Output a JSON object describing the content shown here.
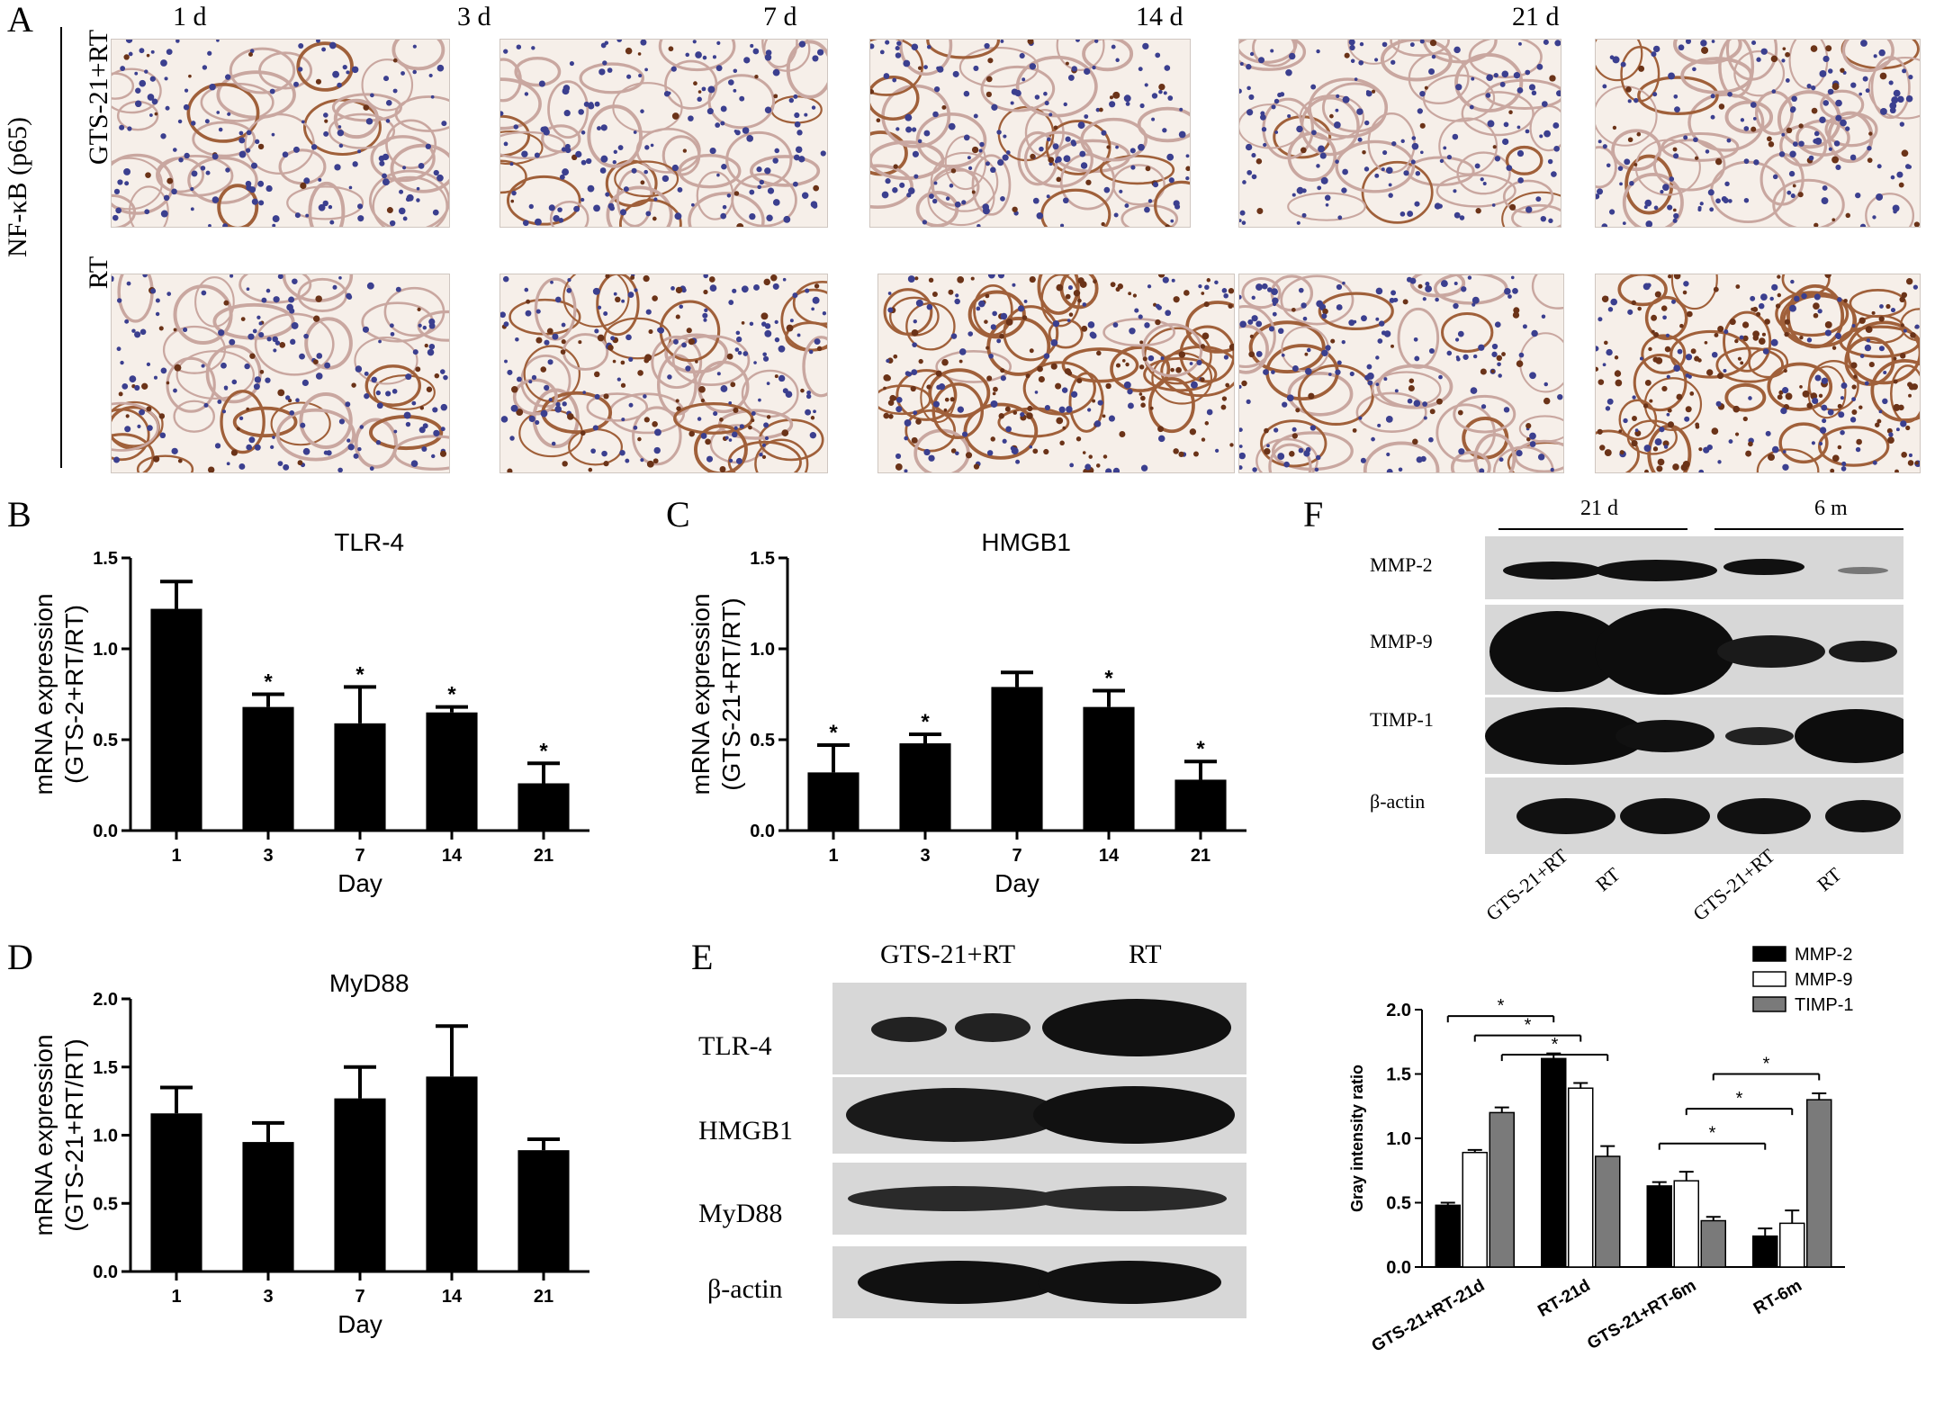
{
  "panelA": {
    "letter": "A",
    "days": [
      "1 d",
      "3 d",
      "7 d",
      "14 d",
      "21 d"
    ],
    "stain_label": "NF-κB (p65)",
    "rows": [
      "GTS-21+RT",
      "RT"
    ]
  },
  "panelB": {
    "letter": "B"
  },
  "panelC": {
    "letter": "C"
  },
  "panelD": {
    "letter": "D"
  },
  "panelE": {
    "letter": "E",
    "columns": [
      "GTS-21+RT",
      "RT"
    ],
    "rows": [
      "TLR-4",
      "HMGB1",
      "MyD88",
      "β-actin"
    ]
  },
  "panelF": {
    "letter": "F",
    "groups": [
      "21 d",
      "6 m"
    ],
    "rows": [
      "MMP-2",
      "MMP-9",
      "TIMP-1",
      "β-actin"
    ],
    "lanes": [
      "GTS-21+RT",
      "RT",
      "GTS-21+RT",
      "RT"
    ]
  },
  "chart_data": [
    {
      "panel": "B",
      "type": "bar",
      "title": "TLR-4",
      "xlabel": "Day",
      "ylabel": "mRNA expression\n(GTS-2+RT/RT)",
      "categories": [
        "1",
        "3",
        "7",
        "14",
        "21"
      ],
      "values": [
        1.22,
        0.68,
        0.59,
        0.65,
        0.26
      ],
      "errors": [
        0.15,
        0.07,
        0.2,
        0.03,
        0.11
      ],
      "significance": [
        "",
        "*",
        "*",
        "*",
        "*"
      ],
      "ylim": [
        0,
        1.5
      ],
      "yticks": [
        "0.0",
        "0.5",
        "1.0",
        "1.5"
      ]
    },
    {
      "panel": "C",
      "type": "bar",
      "title": "HMGB1",
      "xlabel": "Day",
      "ylabel": "mRNA expression\n(GTS-21+RT/RT)",
      "categories": [
        "1",
        "3",
        "7",
        "14",
        "21"
      ],
      "values": [
        0.32,
        0.48,
        0.79,
        0.68,
        0.28
      ],
      "errors": [
        0.15,
        0.05,
        0.08,
        0.09,
        0.1
      ],
      "significance": [
        "*",
        "*",
        "",
        "*",
        "*"
      ],
      "ylim": [
        0,
        1.5
      ],
      "yticks": [
        "0.0",
        "0.5",
        "1.0",
        "1.5"
      ]
    },
    {
      "panel": "D",
      "type": "bar",
      "title": "MyD88",
      "xlabel": "Day",
      "ylabel": "mRNA expression\n(GTS-21+RT/RT)",
      "categories": [
        "1",
        "3",
        "7",
        "14",
        "21"
      ],
      "values": [
        1.16,
        0.95,
        1.27,
        1.43,
        0.89
      ],
      "errors": [
        0.19,
        0.14,
        0.23,
        0.37,
        0.08
      ],
      "significance": [
        "",
        "",
        "",
        "",
        ""
      ],
      "ylim": [
        0,
        2.0
      ],
      "yticks": [
        "0.0",
        "0.5",
        "1.0",
        "1.5",
        "2.0"
      ]
    },
    {
      "panel": "F",
      "type": "bar",
      "title": "",
      "xlabel": "",
      "ylabel": "Gray intensity ratio",
      "categories": [
        "GTS-21+RT-21d",
        "RT-21d",
        "GTS-21+RT-6m",
        "RT-6m"
      ],
      "series": [
        {
          "name": "MMP-2",
          "color": "#000000",
          "values": [
            0.48,
            1.62,
            0.63,
            0.24
          ],
          "errors": [
            0.02,
            0.04,
            0.03,
            0.06
          ]
        },
        {
          "name": "MMP-9",
          "color": "#ffffff",
          "values": [
            0.89,
            1.39,
            0.67,
            0.34
          ],
          "errors": [
            0.02,
            0.04,
            0.07,
            0.1
          ]
        },
        {
          "name": "TIMP-1",
          "color": "#7a7a7a",
          "values": [
            1.2,
            0.86,
            0.36,
            1.3
          ],
          "errors": [
            0.04,
            0.08,
            0.03,
            0.05
          ]
        }
      ],
      "brackets": [
        "*",
        "*",
        "*",
        "*",
        "*",
        "*"
      ],
      "ylim": [
        0,
        2.0
      ],
      "yticks": [
        "0.0",
        "0.5",
        "1.0",
        "1.5",
        "2.0"
      ],
      "legend": "top-right"
    }
  ]
}
